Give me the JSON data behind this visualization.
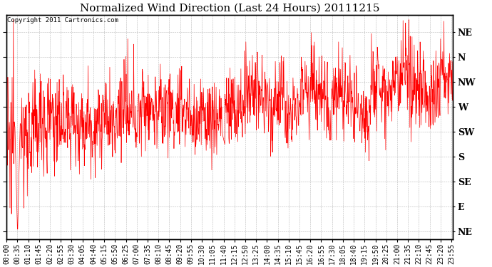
{
  "title": "Normalized Wind Direction (Last 24 Hours) 20111215",
  "copyright": "Copyright 2011 Cartronics.com",
  "line_color": "#ff0000",
  "background_color": "#ffffff",
  "plot_background": "#ffffff",
  "grid_color": "#888888",
  "ytick_labels": [
    "NE",
    "N",
    "NW",
    "W",
    "SW",
    "S",
    "SE",
    "E",
    "NE"
  ],
  "ytick_values": [
    8,
    7,
    6,
    5,
    4,
    3,
    2,
    1,
    0
  ],
  "ylim": [
    -0.3,
    8.7
  ],
  "title_fontsize": 11,
  "tick_fontsize": 7,
  "xtick_interval_minutes": 35,
  "total_minutes": 1440,
  "linewidth": 0.5
}
